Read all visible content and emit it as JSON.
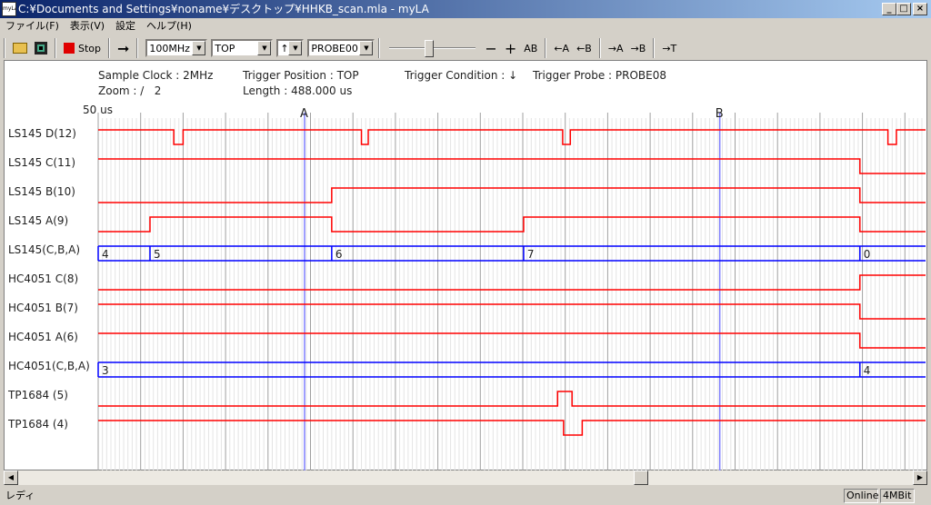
{
  "window": {
    "title": "C:¥Documents and Settings¥noname¥デスクトップ¥HHKB_scan.mla - myLA",
    "icon_text": "myLA",
    "min": "_",
    "max": "□",
    "close": "×"
  },
  "menu": [
    "ファイル(F)",
    "表示(V)",
    "設定",
    "ヘルプ(H)"
  ],
  "toolbar": {
    "stop_label": "Stop",
    "arrow": "➞",
    "clock": "100MHz",
    "position": "TOP",
    "condition": "↑",
    "probe": "PROBE00",
    "zoom_slider_level": 0.45,
    "minus": "−",
    "plus": "+",
    "ab": "AB",
    "to_a_left": "←A",
    "to_b_left": "←B",
    "to_a_right": "→A",
    "to_b_right": "→B",
    "to_t": "→T"
  },
  "info": {
    "sample_clock": "Sample Clock : 2MHz",
    "trigger_position": "Trigger Position : TOP",
    "trigger_condition": "Trigger Condition : ↓",
    "trigger_probe": "Trigger Probe : PROBE08",
    "zoom": "Zoom : /   2",
    "length": "Length : 488.000 us",
    "scale": "50 us"
  },
  "colors": {
    "signal": "#ff0000",
    "bus": "#0000ff",
    "cursor": "#8080ff"
  },
  "chart_data": {
    "type": "timing",
    "x_unit": "us",
    "division": 50,
    "xlim": [
      0,
      975
    ],
    "cursors": [
      {
        "name": "A",
        "t": 243
      },
      {
        "name": "B",
        "t": 732
      }
    ],
    "signals": [
      {
        "name": "LS145 D(12)",
        "type": "bit",
        "init": 1,
        "edges": [
          89,
          100,
          310,
          318,
          547,
          556,
          930,
          940
        ]
      },
      {
        "name": "LS145 C(11)",
        "type": "bit",
        "init": 1,
        "edges": [
          897
        ]
      },
      {
        "name": "LS145 B(10)",
        "type": "bit",
        "init": 0,
        "edges": [
          275,
          897
        ]
      },
      {
        "name": "LS145 A(9)",
        "type": "bit",
        "init": 0,
        "edges": [
          61,
          275,
          501,
          897
        ]
      },
      {
        "name": "LS145(C,B,A)",
        "type": "bus",
        "values": [
          {
            "t": 0,
            "v": "4"
          },
          {
            "t": 61,
            "v": "5"
          },
          {
            "t": 275,
            "v": "6"
          },
          {
            "t": 501,
            "v": "7"
          },
          {
            "t": 897,
            "v": "0"
          }
        ]
      },
      {
        "name": "HC4051 C(8)",
        "type": "bit",
        "init": 0,
        "edges": [
          897
        ]
      },
      {
        "name": "HC4051 B(7)",
        "type": "bit",
        "init": 1,
        "edges": [
          897
        ]
      },
      {
        "name": "HC4051 A(6)",
        "type": "bit",
        "init": 1,
        "edges": [
          897
        ]
      },
      {
        "name": "HC4051(C,B,A)",
        "type": "bus",
        "values": [
          {
            "t": 0,
            "v": "3"
          },
          {
            "t": 897,
            "v": "4"
          }
        ]
      },
      {
        "name": "TP1684 (5)",
        "type": "bit",
        "init": 0,
        "edges": [
          541,
          558
        ]
      },
      {
        "name": "TP1684 (4)",
        "type": "bit",
        "init": 1,
        "edges": [
          548,
          570
        ]
      }
    ]
  },
  "status": {
    "text": "レディ",
    "online": "Online",
    "memory": "4MBit"
  }
}
